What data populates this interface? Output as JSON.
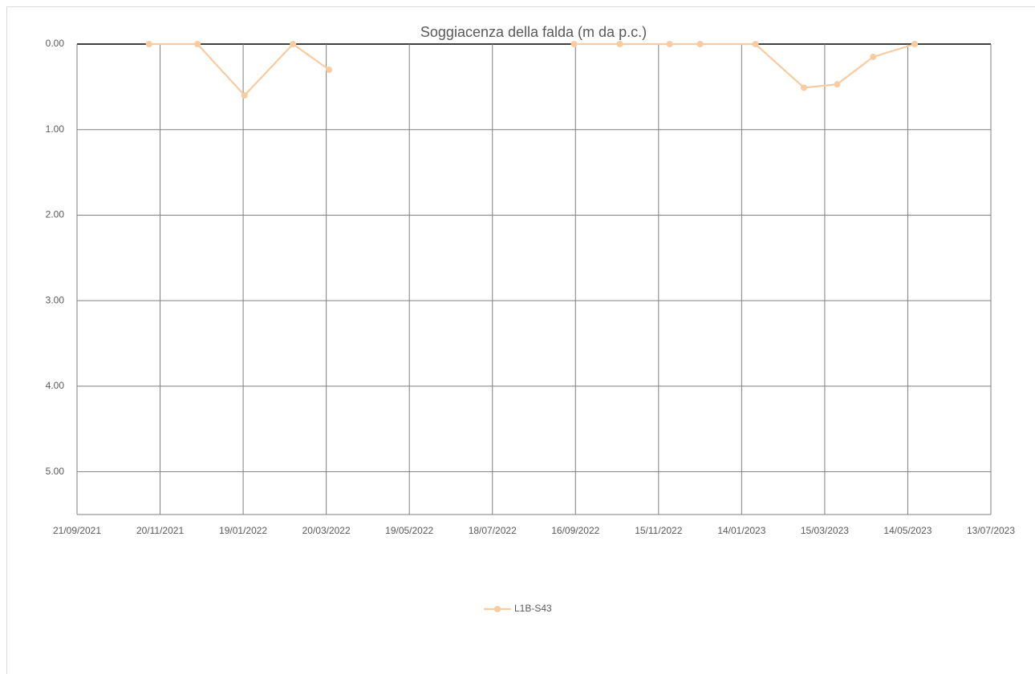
{
  "chart_data": {
    "type": "line",
    "title": "Soggiacenza della falda (m da p.c.)",
    "x": [
      "12/11/2021",
      "17/12/2021",
      "20/01/2022",
      "24/02/2022",
      "22/03/2022",
      "15/06/2022",
      "15/09/2022",
      "18/10/2022",
      "23/11/2022",
      "15/12/2022",
      "24/01/2023",
      "28/02/2023",
      "24/03/2023",
      "19/04/2023",
      "19/05/2023"
    ],
    "series": [
      {
        "name": "L1B-S43",
        "color": "#f8cba0",
        "values": [
          0,
          0,
          0.6,
          0,
          0.3,
          null,
          0,
          0,
          0,
          0,
          0,
          0.51,
          0.47,
          0.15,
          0
        ]
      }
    ],
    "xlim": [
      "21/09/2021",
      "13/07/2023"
    ],
    "xticks": [
      "21/09/2021",
      "20/11/2021",
      "19/01/2022",
      "20/03/2022",
      "19/05/2022",
      "18/07/2022",
      "16/09/2022",
      "15/11/2022",
      "14/01/2023",
      "15/03/2023",
      "14/05/2023",
      "13/07/2023"
    ],
    "ylim": [
      0,
      5.5
    ],
    "y_inverted": true,
    "yticks": [
      {
        "value": 0,
        "label": "0.00"
      },
      {
        "value": 1,
        "label": "1.00"
      },
      {
        "value": 2,
        "label": "2.00"
      },
      {
        "value": 3,
        "label": "3.00"
      },
      {
        "value": 4,
        "label": "4.00"
      },
      {
        "value": 5,
        "label": "5.00"
      }
    ],
    "grid": true,
    "legend": "bottom"
  }
}
